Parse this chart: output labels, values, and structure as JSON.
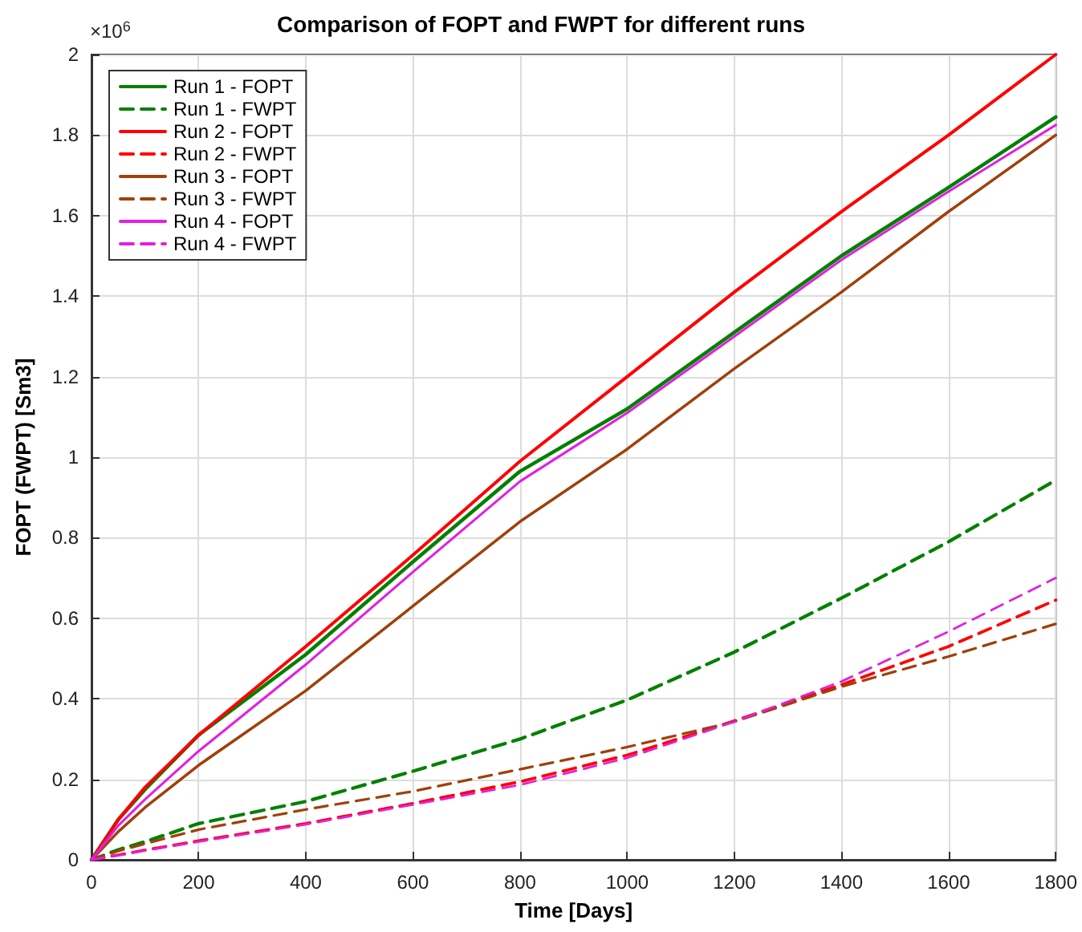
{
  "chart_data": {
    "type": "line",
    "title": "Comparison of FOPT and FWPT for different runs",
    "xlabel": "Time [Days]",
    "ylabel": "FOPT (FWPT) [Sm3]",
    "annotations": [
      "×10$^{6}$"
    ],
    "xlim": [
      0,
      1800
    ],
    "xticks": [
      0,
      200,
      400,
      600,
      800,
      1000,
      1200,
      1400,
      1600,
      1800
    ],
    "ylim": [
      0,
      2
    ],
    "yticks": [
      0,
      0.2,
      0.4,
      0.6,
      0.8,
      1,
      1.2,
      1.4,
      1.6,
      1.8,
      2
    ],
    "grid": true,
    "legend": "top left",
    "marker": "none",
    "x": [
      0,
      50,
      100,
      200,
      400,
      600,
      800,
      1000,
      1200,
      1400,
      1600,
      1800
    ],
    "series": [
      {
        "name": "Run 1 - FOPT",
        "color": "#008000",
        "line_style": "solid",
        "values": [
          0,
          0.1,
          0.175,
          0.31,
          0.51,
          0.74,
          0.965,
          1.12,
          1.31,
          1.5,
          1.67,
          1.845
        ]
      },
      {
        "name": "Run 1 - FWPT",
        "color": "#008000",
        "line_style": "dashed",
        "values": [
          0,
          0.025,
          0.045,
          0.09,
          0.145,
          0.22,
          0.3,
          0.397,
          0.516,
          0.65,
          0.79,
          0.943
        ]
      },
      {
        "name": "Run 2 - FOPT",
        "color": "#ff0000",
        "line_style": "solid",
        "values": [
          0,
          0.1,
          0.18,
          0.31,
          0.53,
          0.757,
          0.99,
          1.2,
          1.41,
          1.61,
          1.8,
          2
        ]
      },
      {
        "name": "Run 2 - FWPT",
        "color": "#ff0000",
        "line_style": "dashed",
        "values": [
          0,
          0.012,
          0.024,
          0.047,
          0.09,
          0.14,
          0.194,
          0.26,
          0.345,
          0.435,
          0.53,
          0.645
        ]
      },
      {
        "name": "Run 3 - FOPT",
        "color": "#a0400a",
        "line_style": "solid",
        "values": [
          0,
          0.07,
          0.13,
          0.235,
          0.42,
          0.63,
          0.84,
          1.02,
          1.22,
          1.41,
          1.61,
          1.8
        ]
      },
      {
        "name": "Run 3 - FWPT",
        "color": "#a0400a",
        "line_style": "dashed",
        "values": [
          0,
          0.022,
          0.04,
          0.075,
          0.125,
          0.17,
          0.225,
          0.28,
          0.343,
          0.43,
          0.505,
          0.586
        ]
      },
      {
        "name": "Run 4 - FOPT",
        "color": "#e020e0",
        "line_style": "solid",
        "values": [
          0,
          0.085,
          0.15,
          0.27,
          0.485,
          0.715,
          0.94,
          1.11,
          1.3,
          1.49,
          1.66,
          1.825
        ]
      },
      {
        "name": "Run 4 - FWPT",
        "color": "#e020e0",
        "line_style": "dashed",
        "values": [
          0,
          0.011,
          0.023,
          0.045,
          0.088,
          0.137,
          0.186,
          0.253,
          0.343,
          0.443,
          0.567,
          0.7
        ]
      }
    ]
  }
}
